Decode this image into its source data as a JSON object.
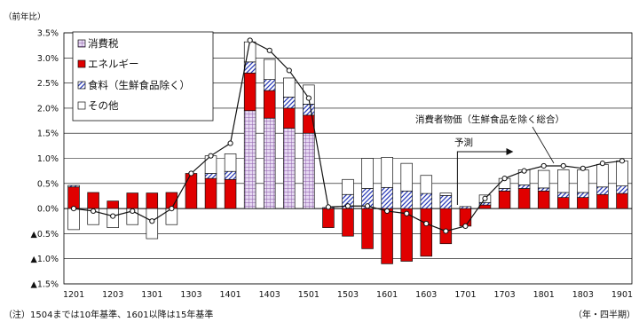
{
  "chart_data": {
    "type": "bar",
    "stacked": true,
    "unit_label": "（前年比）",
    "ylim": [
      -1.5,
      3.5
    ],
    "ytick_values": [
      3.5,
      3.0,
      2.5,
      2.0,
      1.5,
      1.0,
      0.5,
      0.0,
      -0.5,
      -1.0,
      -1.5
    ],
    "ytick_labels": [
      "3.5%",
      "3.0%",
      "2.5%",
      "2.0%",
      "1.5%",
      "1.0%",
      "0.5%",
      "0.0%",
      "▲0.5%",
      "▲1.0%",
      "▲1.5%"
    ],
    "xtick_labels": [
      "1201",
      "1203",
      "1301",
      "1303",
      "1401",
      "1403",
      "1501",
      "1503",
      "1601",
      "1603",
      "1701",
      "1703",
      "1801",
      "1803",
      "1901"
    ],
    "num_periods": 29,
    "grid": true,
    "legend_position": "top-left",
    "series": [
      {
        "name": "消費税",
        "color": "#c8a8e0",
        "pattern": "grid",
        "values": [
          0,
          0,
          0,
          0,
          0,
          0,
          0,
          0,
          0,
          1.95,
          1.8,
          1.6,
          1.5,
          0,
          0,
          0,
          0,
          0,
          0,
          0,
          0,
          0,
          0,
          0,
          0,
          0,
          0,
          0,
          0
        ]
      },
      {
        "name": "エネルギー",
        "color": "#e00000",
        "pattern": "solid",
        "values": [
          0.43,
          0.32,
          0.15,
          0.31,
          0.31,
          0.32,
          0.7,
          0.6,
          0.58,
          0.75,
          0.55,
          0.4,
          0.36,
          -0.38,
          -0.55,
          -0.8,
          -1.1,
          -1.05,
          -0.95,
          -0.7,
          -0.35,
          0.07,
          0.35,
          0.4,
          0.35,
          0.22,
          0.22,
          0.28,
          0.3
        ]
      },
      {
        "name": "食料（生鮮食品除く）",
        "color": "#3040c0",
        "pattern": "diagonal",
        "values": [
          0.03,
          0,
          0,
          0,
          0,
          0,
          0,
          0.1,
          0.16,
          0.22,
          0.22,
          0.22,
          0.22,
          0.02,
          0.28,
          0.4,
          0.42,
          0.35,
          0.3,
          0.26,
          0.04,
          0.05,
          0.05,
          0.07,
          0.06,
          0.1,
          0.1,
          0.15,
          0.15
        ]
      },
      {
        "name": "その他",
        "color": "#ffffff",
        "pattern": "white",
        "values": [
          -0.42,
          -0.32,
          -0.38,
          -0.32,
          -0.6,
          -0.32,
          0,
          0.35,
          0.35,
          0.4,
          0.4,
          0.38,
          0.38,
          0,
          0.3,
          0.6,
          0.6,
          0.55,
          0.36,
          0.05,
          0,
          0.15,
          0.2,
          0.3,
          0.35,
          0.45,
          0.45,
          0.45,
          0.5
        ]
      }
    ],
    "line_series": {
      "name": "消費者物価（生鮮食品を除く総合）",
      "values": [
        0.0,
        -0.05,
        -0.15,
        -0.05,
        -0.25,
        0.0,
        0.7,
        1.05,
        1.3,
        3.35,
        3.15,
        2.75,
        2.2,
        0.03,
        0.05,
        0.05,
        -0.05,
        -0.1,
        -0.3,
        -0.45,
        -0.35,
        0.2,
        0.6,
        0.75,
        0.85,
        0.85,
        0.8,
        0.9,
        0.95
      ]
    },
    "annotations": {
      "cpi_label": "消費者物価（生鮮食品を除く総合）",
      "forecast_label": "予測",
      "forecast_start_index": 20
    }
  },
  "notes": {
    "left": "（注）1504までは10年基準、1601以降は15年基準",
    "right": "（年・四半期）"
  }
}
